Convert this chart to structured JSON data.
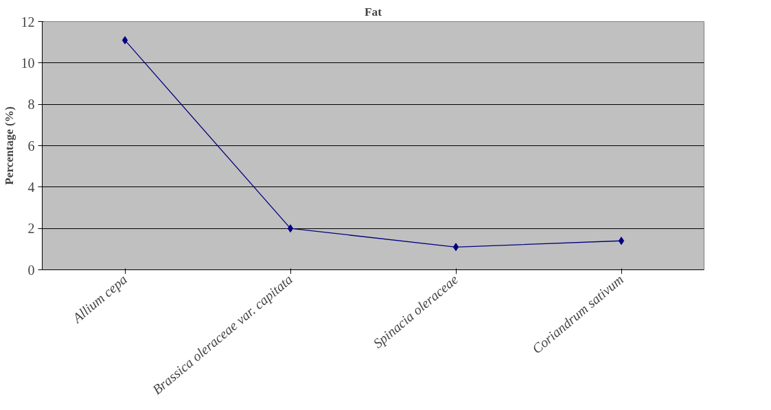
{
  "chart_data": {
    "type": "line",
    "title": "Fat",
    "ylabel": "Percentage (%)",
    "categories": [
      "Allium cepa",
      "Brassica oleraceae var. capitata",
      "Spinacia oleraceae",
      "Coriandrum sativum"
    ],
    "series": [
      {
        "color": "#000080",
        "values": [
          11.1,
          2.0,
          1.1,
          1.4
        ]
      }
    ],
    "ylim": [
      0,
      12
    ],
    "yticks": [
      0,
      2,
      4,
      6,
      8,
      10,
      12
    ],
    "grid": "y",
    "marker": "diamond",
    "line_style": "solid"
  }
}
